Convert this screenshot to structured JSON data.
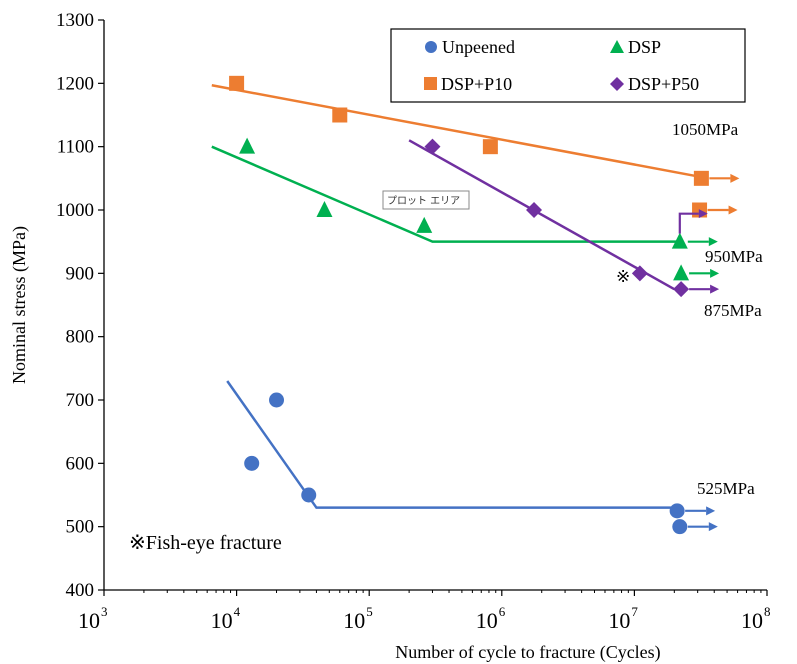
{
  "chart_data": {
    "type": "scatter",
    "xlabel": "Number of cycle to fracture  (Cycles)",
    "ylabel": "Nominal stress  (MPa)",
    "xscale": "log",
    "xlim": [
      1000,
      100000000
    ],
    "ylim": [
      400,
      1300
    ],
    "yticks": [
      "400",
      "500",
      "600",
      "700",
      "800",
      "900",
      "1000",
      "1100",
      "1200",
      "1300"
    ],
    "xticks": [
      {
        "base": "10",
        "exp": "3"
      },
      {
        "base": "10",
        "exp": "4"
      },
      {
        "base": "10",
        "exp": "5"
      },
      {
        "base": "10",
        "exp": "6"
      },
      {
        "base": "10",
        "exp": "7"
      },
      {
        "base": "10",
        "exp": "8"
      }
    ],
    "legend_position": "top-right",
    "series": [
      {
        "name": "Unpeened",
        "color": "#4472C4",
        "marker": "circle",
        "points": [
          [
            13000,
            600
          ],
          [
            20000,
            700
          ],
          [
            35000,
            550
          ]
        ],
        "runouts": [
          [
            21000000,
            525
          ],
          [
            22000000,
            500
          ]
        ],
        "fit": [
          [
            8500,
            730
          ],
          [
            40000,
            530
          ],
          [
            22000000,
            530
          ]
        ]
      },
      {
        "name": "DSP",
        "color": "#00B050",
        "marker": "triangle",
        "points": [
          [
            12000,
            1100
          ],
          [
            46000,
            1000
          ],
          [
            260000,
            975
          ]
        ],
        "runouts": [
          [
            22000000,
            950
          ],
          [
            22500000,
            900
          ]
        ],
        "fit": [
          [
            6500,
            1100
          ],
          [
            300000,
            950
          ],
          [
            22000000,
            950
          ]
        ]
      },
      {
        "name": "DSP+P10",
        "color": "#ED7D31",
        "marker": "square",
        "points": [
          [
            10000,
            1200
          ],
          [
            60000,
            1150
          ],
          [
            820000,
            1100
          ]
        ],
        "runouts": [
          [
            32000000,
            1050
          ],
          [
            31000000,
            1000
          ]
        ],
        "fit": [
          [
            6500,
            1197
          ],
          [
            32000000,
            1052
          ]
        ]
      },
      {
        "name": "DSP+P50",
        "color": "#7030A0",
        "marker": "diamond",
        "points": [
          [
            300000,
            1100
          ],
          [
            1750000,
            1000
          ],
          [
            11000000,
            900
          ]
        ],
        "runouts": [
          [
            22500000,
            875
          ]
        ],
        "fit": [
          [
            200000,
            1110
          ],
          [
            20000000,
            875
          ]
        ]
      }
    ],
    "annotations": {
      "a1050": "1050MPa",
      "a950": "950MPa",
      "a875": "875MPa",
      "a525": "525MPa",
      "fisheye_mark": "※",
      "fisheye_note": "※Fish-eye fracture",
      "plot_area_tag": "プロット エリア"
    }
  }
}
